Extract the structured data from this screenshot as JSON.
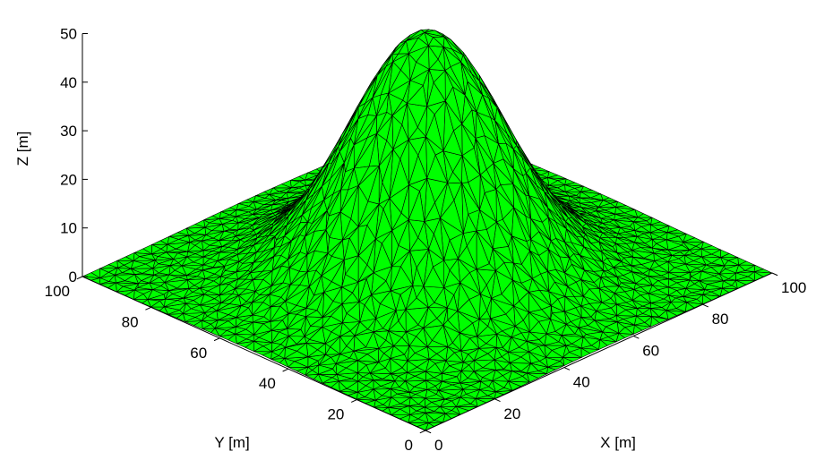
{
  "chart_data": {
    "type": "surface",
    "function": "peak",
    "peak": {
      "x": 50,
      "y": 50,
      "z": 50
    },
    "base_z": 0,
    "xlabel": "X [m]",
    "ylabel": "Y [m]",
    "zlabel": "Z [m]",
    "xlim": [
      0,
      100
    ],
    "ylim": [
      0,
      100
    ],
    "zlim": [
      0,
      50
    ],
    "xticks": [
      0,
      20,
      40,
      60,
      80,
      100
    ],
    "yticks": [
      0,
      20,
      40,
      60,
      80,
      100
    ],
    "zticks": [
      0,
      10,
      20,
      30,
      40,
      50
    ],
    "mesh": "triangulated",
    "grid": false
  },
  "colors": {
    "surface_fill": "#00ff00",
    "mesh_edges": "#000000",
    "axes": "#000000",
    "background": "#ffffff"
  }
}
